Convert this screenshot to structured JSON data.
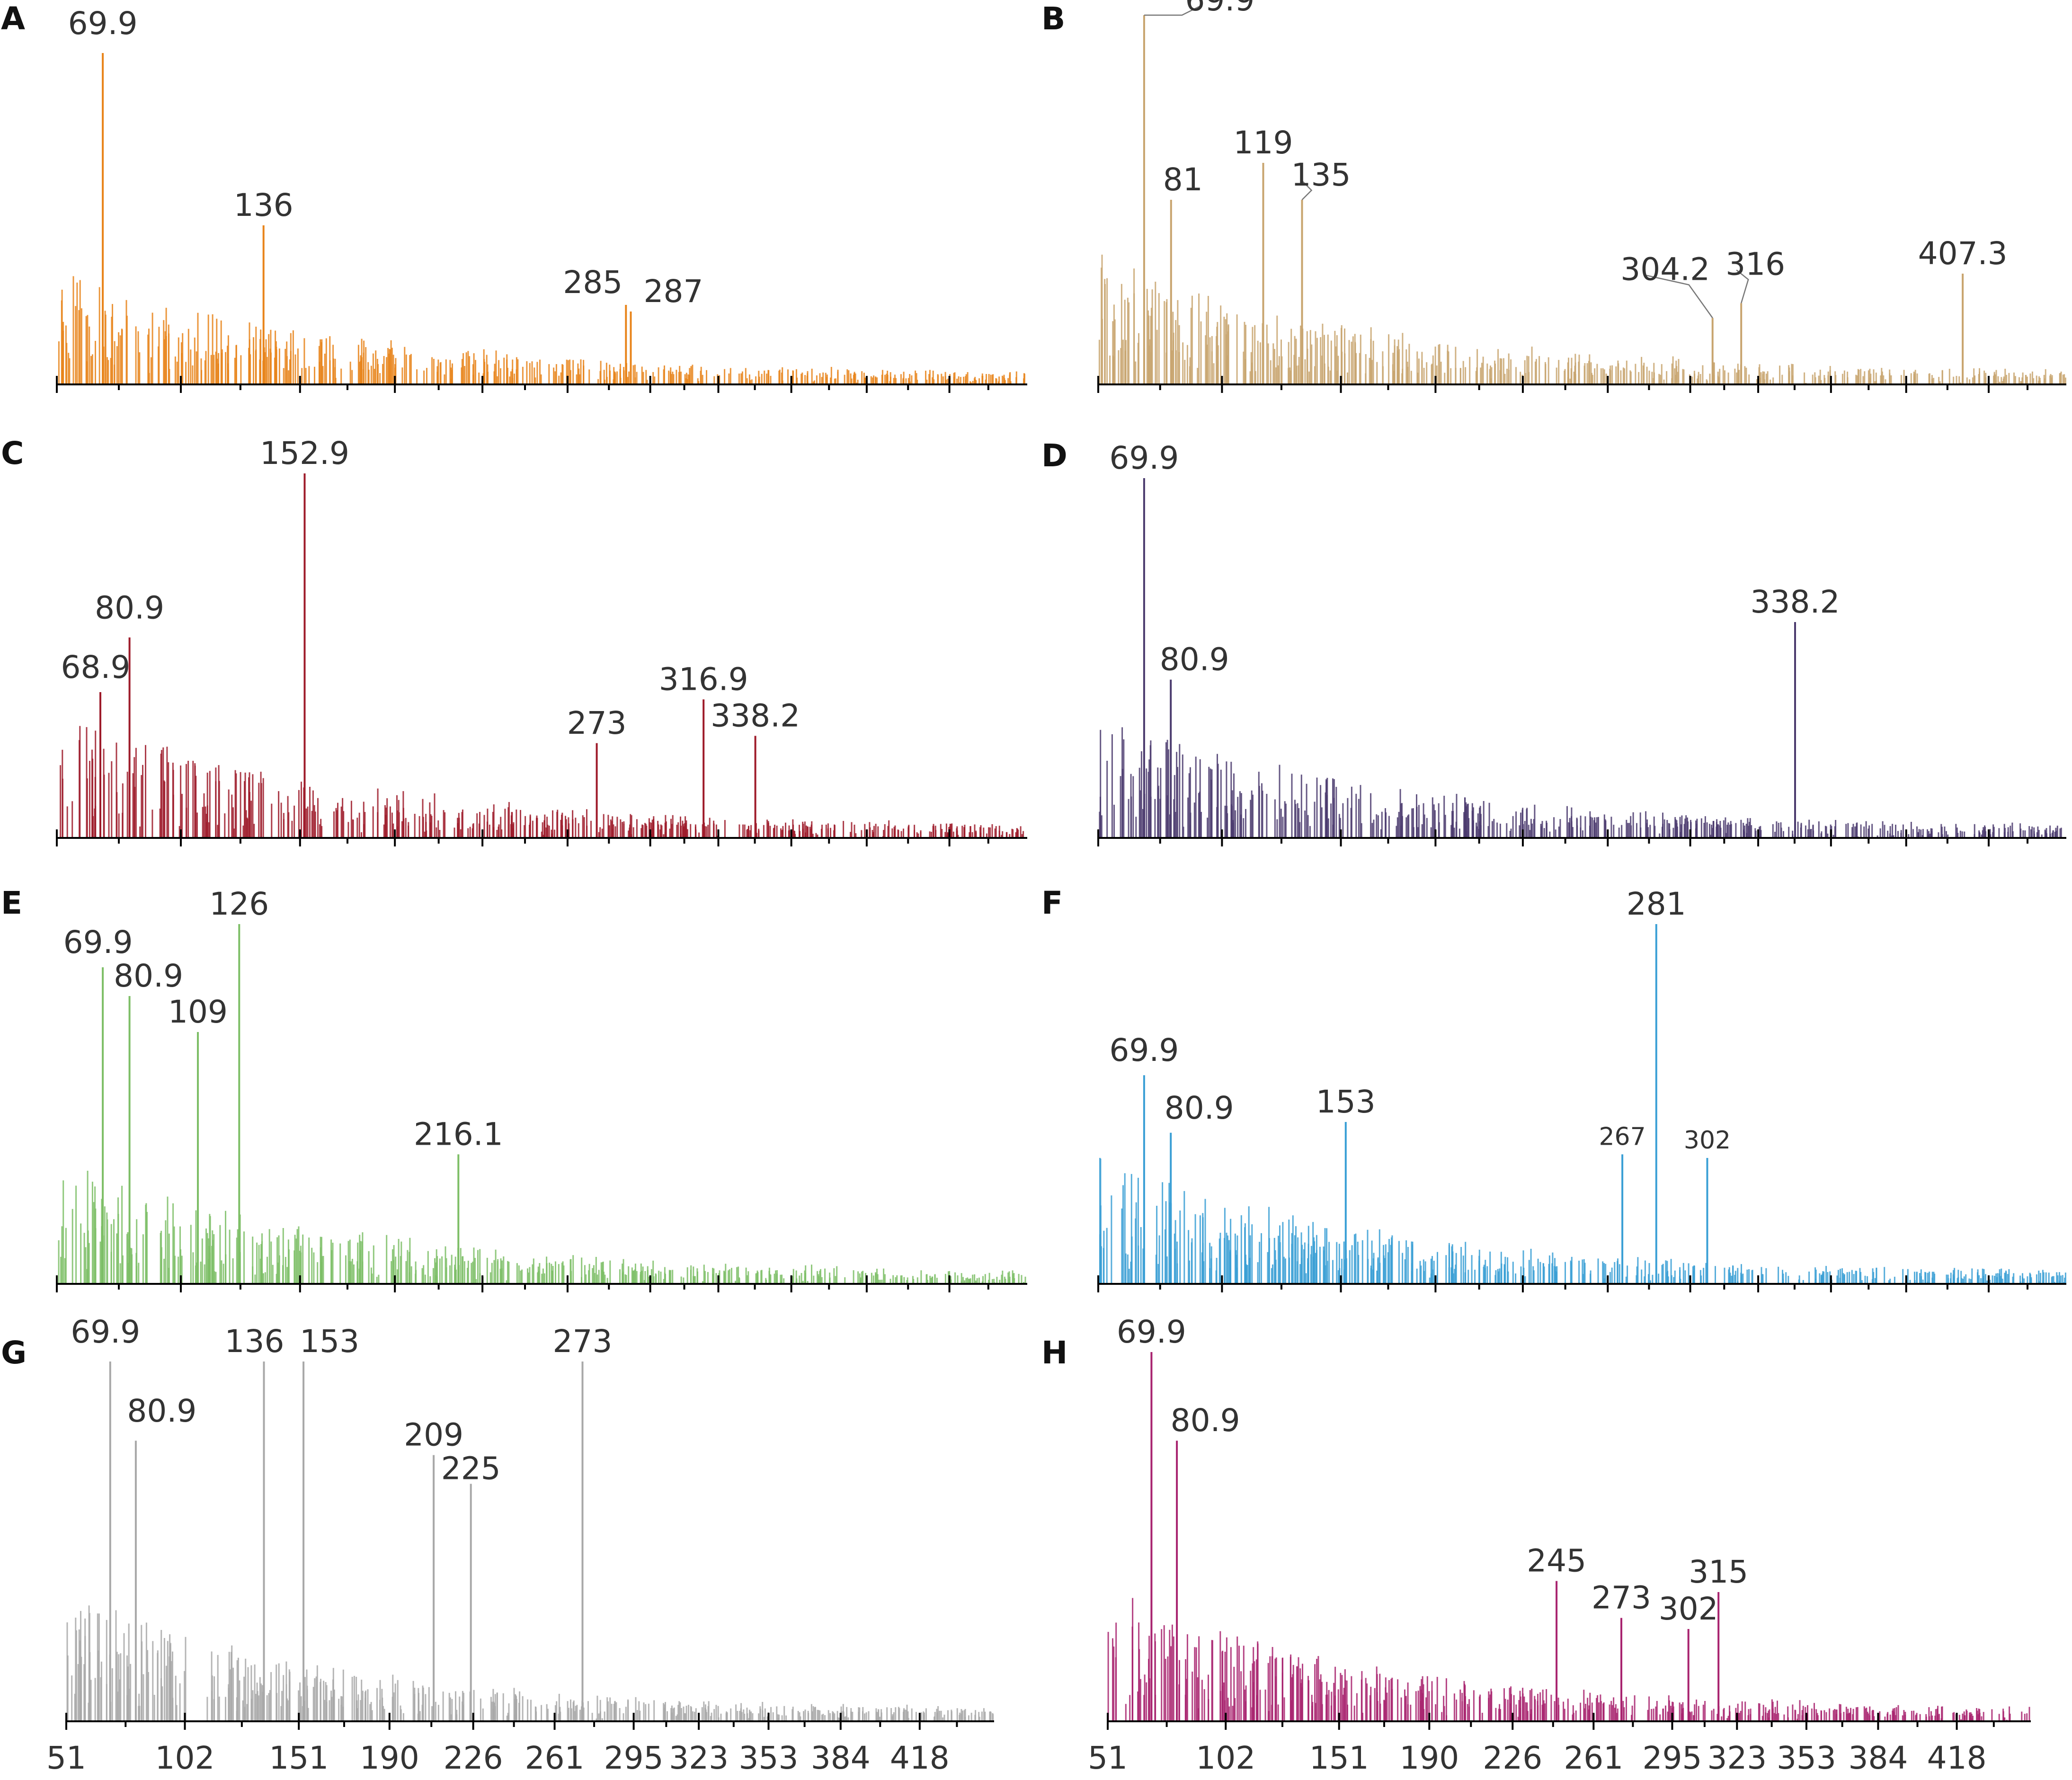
{
  "chart_data": [
    {
      "panel": "A",
      "type": "bar",
      "color": "#E8841A",
      "x_range": [
        51,
        450
      ],
      "x_ticks": [
        51,
        102,
        151,
        190,
        226,
        261,
        295,
        323,
        353,
        384,
        418
      ],
      "peaks": [
        {
          "x": 69.9,
          "y": 100,
          "label": "69.9"
        },
        {
          "x": 136,
          "y": 48,
          "label": "136"
        },
        {
          "x": 285,
          "y": 24,
          "label": "285"
        },
        {
          "x": 287,
          "y": 22,
          "label": "287"
        }
      ]
    },
    {
      "panel": "B",
      "type": "bar",
      "color": "#C8A46E",
      "x_range": [
        51,
        450
      ],
      "x_ticks": [
        51,
        102,
        151,
        190,
        226,
        261,
        295,
        323,
        353,
        384,
        418
      ],
      "peaks": [
        {
          "x": 69.9,
          "y": 100,
          "label": "69.9"
        },
        {
          "x": 81,
          "y": 50,
          "label": "81"
        },
        {
          "x": 119,
          "y": 60,
          "label": "119"
        },
        {
          "x": 135,
          "y": 50,
          "label": "135"
        },
        {
          "x": 304.2,
          "y": 18,
          "label": "304.2"
        },
        {
          "x": 316,
          "y": 22,
          "label": "316"
        },
        {
          "x": 407.3,
          "y": 30,
          "label": "407.3"
        }
      ]
    },
    {
      "panel": "C",
      "type": "bar",
      "color": "#9E1B2A",
      "x_range": [
        51,
        450
      ],
      "x_ticks": [
        51,
        102,
        151,
        190,
        226,
        261,
        295,
        323,
        353,
        384,
        418
      ],
      "peaks": [
        {
          "x": 68.9,
          "y": 40,
          "label": "68.9"
        },
        {
          "x": 80.9,
          "y": 55,
          "label": "80.9"
        },
        {
          "x": 152.9,
          "y": 100,
          "label": "152.9"
        },
        {
          "x": 273,
          "y": 26,
          "label": "273"
        },
        {
          "x": 316.9,
          "y": 38,
          "label": "316.9"
        },
        {
          "x": 338.2,
          "y": 28,
          "label": "338.2"
        }
      ]
    },
    {
      "panel": "D",
      "type": "bar",
      "color": "#4B3B6E",
      "x_range": [
        51,
        450
      ],
      "x_ticks": [
        51,
        102,
        151,
        190,
        226,
        261,
        295,
        323,
        353,
        384,
        418
      ],
      "peaks": [
        {
          "x": 69.9,
          "y": 100,
          "label": "69.9"
        },
        {
          "x": 80.9,
          "y": 44,
          "label": "80.9"
        },
        {
          "x": 338.2,
          "y": 60,
          "label": "338.2"
        }
      ]
    },
    {
      "panel": "E",
      "type": "bar",
      "color": "#7DBE66",
      "x_range": [
        51,
        450
      ],
      "x_ticks": [
        51,
        102,
        151,
        190,
        226,
        261,
        295,
        323,
        353,
        384,
        418
      ],
      "peaks": [
        {
          "x": 69.9,
          "y": 88,
          "label": "69.9"
        },
        {
          "x": 80.9,
          "y": 80,
          "label": "80.9"
        },
        {
          "x": 109,
          "y": 70,
          "label": "109"
        },
        {
          "x": 126,
          "y": 100,
          "label": "126"
        },
        {
          "x": 216.1,
          "y": 36,
          "label": "216.1"
        }
      ]
    },
    {
      "panel": "F",
      "type": "bar",
      "color": "#3A9FD5",
      "x_range": [
        51,
        450
      ],
      "x_ticks": [
        51,
        102,
        151,
        190,
        226,
        261,
        295,
        323,
        353,
        384,
        418
      ],
      "peaks": [
        {
          "x": 69.9,
          "y": 58,
          "label": "69.9"
        },
        {
          "x": 80.9,
          "y": 42,
          "label": "80.9"
        },
        {
          "x": 153,
          "y": 45,
          "label": "153"
        },
        {
          "x": 267,
          "y": 36,
          "label": "267"
        },
        {
          "x": 281,
          "y": 100,
          "label": "281"
        },
        {
          "x": 302,
          "y": 35,
          "label": "302"
        }
      ]
    },
    {
      "panel": "G",
      "type": "bar",
      "color": "#A8A8A8",
      "x_range": [
        51,
        450
      ],
      "x_ticks": [
        51,
        102,
        151,
        190,
        226,
        261,
        295,
        323,
        353,
        384,
        418
      ],
      "xtick_labels": [
        "51",
        "102",
        "151",
        "190",
        "226",
        "261",
        "295",
        "323",
        "353",
        "384",
        "418"
      ],
      "peaks": [
        {
          "x": 69.9,
          "y": 100,
          "label": "69.9"
        },
        {
          "x": 80.9,
          "y": 78,
          "label": "80.9"
        },
        {
          "x": 136,
          "y": 100,
          "label": "136"
        },
        {
          "x": 153,
          "y": 100,
          "label": "153"
        },
        {
          "x": 209,
          "y": 74,
          "label": "209"
        },
        {
          "x": 225,
          "y": 66,
          "label": "225"
        },
        {
          "x": 273,
          "y": 100,
          "label": "273"
        }
      ]
    },
    {
      "panel": "H",
      "type": "bar",
      "color": "#A8236F",
      "x_range": [
        51,
        450
      ],
      "x_ticks": [
        51,
        102,
        151,
        190,
        226,
        261,
        295,
        323,
        353,
        384,
        418
      ],
      "xtick_labels": [
        "51",
        "102",
        "151",
        "190",
        "226",
        "261",
        "295",
        "323",
        "353",
        "384",
        "418"
      ],
      "peaks": [
        {
          "x": 69.9,
          "y": 100,
          "label": "69.9"
        },
        {
          "x": 80.9,
          "y": 76,
          "label": "80.9"
        },
        {
          "x": 245,
          "y": 38,
          "label": "245"
        },
        {
          "x": 273,
          "y": 28,
          "label": "273"
        },
        {
          "x": 302,
          "y": 25,
          "label": "302"
        },
        {
          "x": 315,
          "y": 35,
          "label": "315"
        }
      ]
    }
  ]
}
